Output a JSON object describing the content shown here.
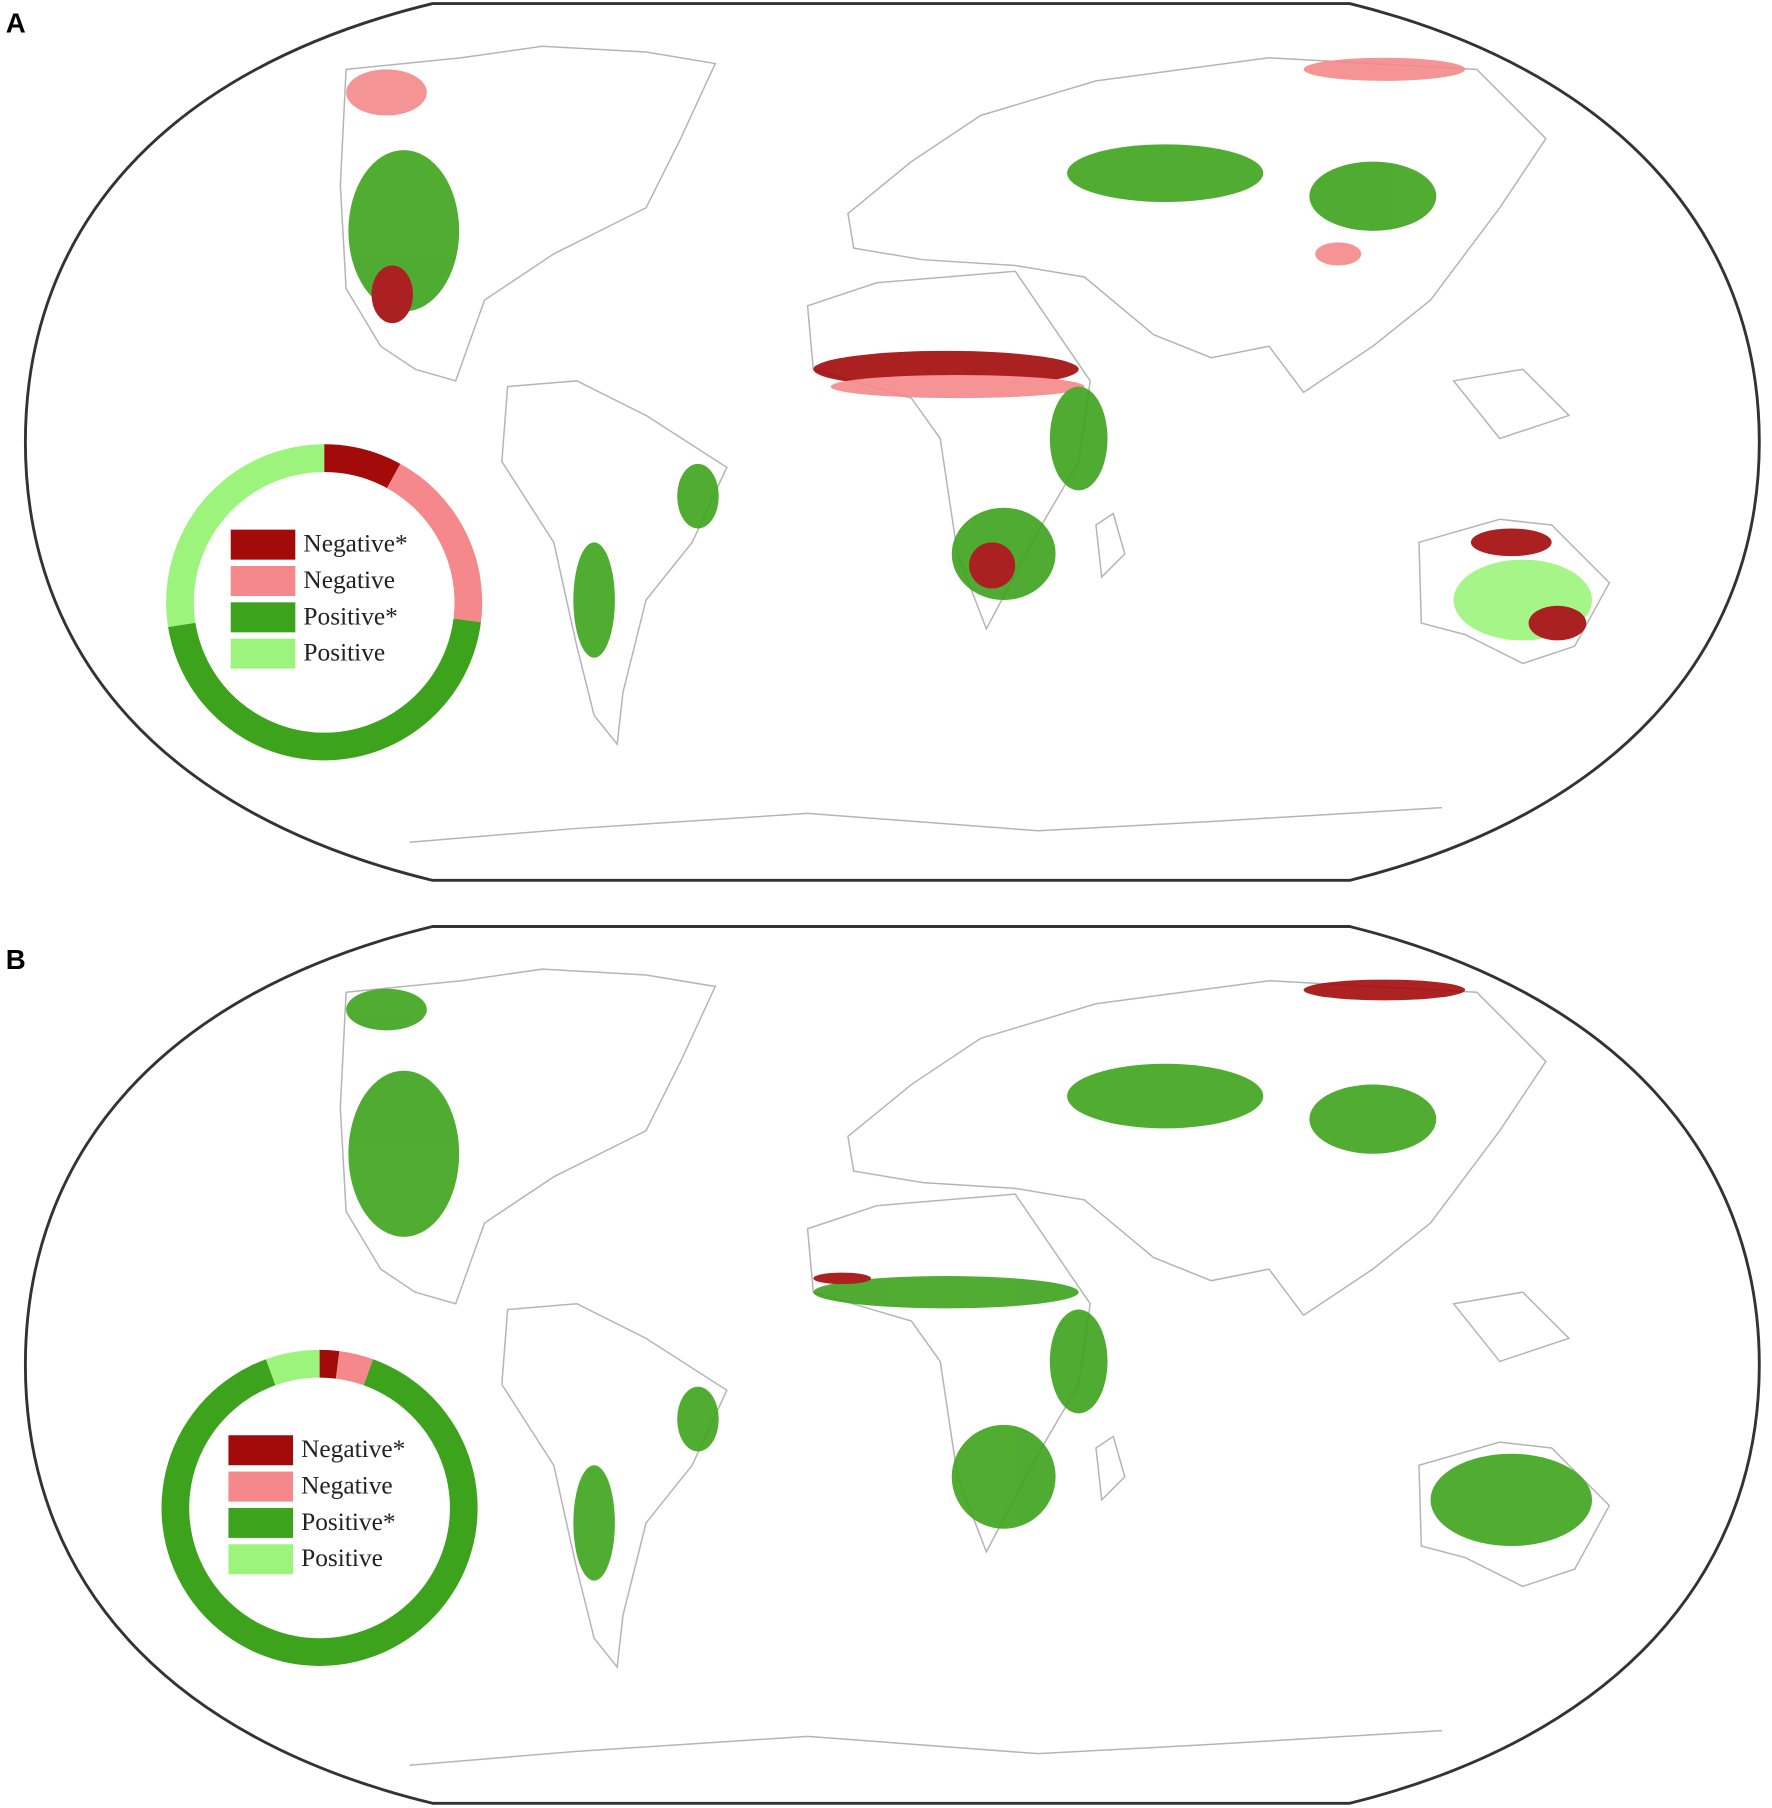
{
  "chart_data": [
    {
      "type": "donut",
      "panel_label": "A",
      "categories": [
        "Negative*",
        "Negative",
        "Positive*",
        "Positive"
      ],
      "values": [
        8,
        19,
        45.5,
        27.5
      ],
      "colors": [
        "#a30a0a",
        "#f4888a",
        "#3ea31c",
        "#9cf47c"
      ]
    },
    {
      "type": "donut",
      "panel_label": "B",
      "categories": [
        "Negative*",
        "Negative",
        "Positive*",
        "Positive"
      ],
      "values": [
        2,
        3.5,
        89,
        5.5
      ],
      "colors": [
        "#a30a0a",
        "#f4888a",
        "#3ea31c",
        "#9cf47c"
      ]
    }
  ]
}
